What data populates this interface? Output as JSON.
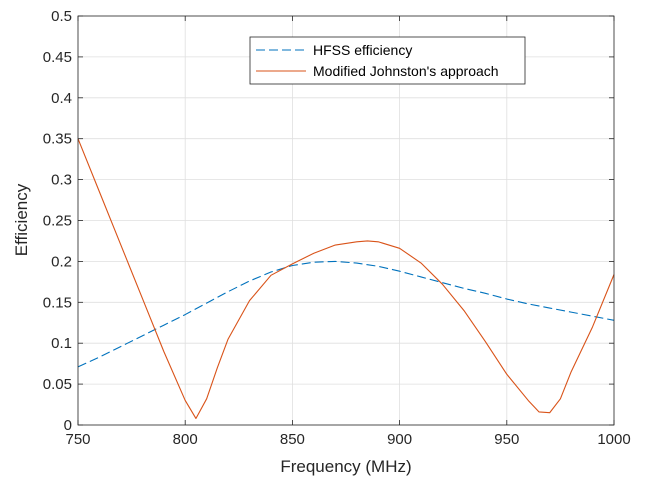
{
  "chart_data": {
    "type": "line",
    "title": "",
    "xlabel": "Frequency (MHz)",
    "ylabel": "Efficiency",
    "xlim": [
      750,
      1000
    ],
    "ylim": [
      0,
      0.5
    ],
    "xticks": [
      750,
      800,
      850,
      900,
      950,
      1000
    ],
    "yticks": [
      0,
      0.05,
      0.1,
      0.15,
      0.2,
      0.25,
      0.3,
      0.35,
      0.4,
      0.45,
      0.5
    ],
    "xtick_labels": [
      "750",
      "800",
      "850",
      "900",
      "950",
      "1000"
    ],
    "ytick_labels": [
      "0",
      "0.05",
      "0.1",
      "0.15",
      "0.2",
      "0.25",
      "0.3",
      "0.35",
      "0.4",
      "0.45",
      "0.5"
    ],
    "grid": true,
    "legend_position": "top-center",
    "series": [
      {
        "name": "HFSS efficiency",
        "color": "#0072BD",
        "style": "dashed",
        "x": [
          750,
          760,
          770,
          780,
          790,
          800,
          810,
          820,
          830,
          840,
          850,
          860,
          870,
          880,
          890,
          900,
          910,
          920,
          930,
          940,
          950,
          960,
          970,
          980,
          990,
          1000
        ],
        "y": [
          0.071,
          0.083,
          0.096,
          0.109,
          0.122,
          0.135,
          0.149,
          0.163,
          0.176,
          0.187,
          0.195,
          0.199,
          0.2,
          0.198,
          0.194,
          0.188,
          0.181,
          0.174,
          0.167,
          0.161,
          0.154,
          0.148,
          0.143,
          0.138,
          0.133,
          0.128
        ]
      },
      {
        "name": "Modified Johnston's approach",
        "color": "#D95319",
        "style": "solid",
        "x": [
          750,
          760,
          770,
          780,
          790,
          800,
          805,
          810,
          815,
          820,
          830,
          840,
          850,
          860,
          870,
          880,
          885,
          890,
          900,
          910,
          920,
          930,
          940,
          950,
          960,
          965,
          970,
          975,
          980,
          990,
          1000
        ],
        "y": [
          0.35,
          0.285,
          0.22,
          0.155,
          0.09,
          0.03,
          0.008,
          0.032,
          0.07,
          0.105,
          0.152,
          0.183,
          0.197,
          0.21,
          0.22,
          0.224,
          0.225,
          0.224,
          0.216,
          0.198,
          0.172,
          0.14,
          0.102,
          0.062,
          0.03,
          0.016,
          0.015,
          0.032,
          0.065,
          0.12,
          0.184
        ]
      }
    ]
  }
}
